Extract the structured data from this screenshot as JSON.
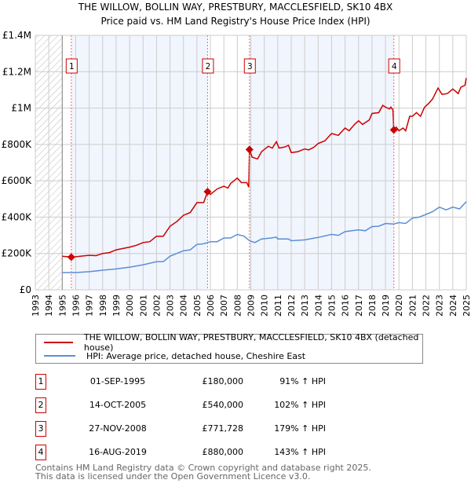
{
  "chart_data": {
    "type": "line",
    "title": "THE WILLOW, BOLLIN WAY, PRESTBURY, MACCLESFIELD, SK10 4BX",
    "subtitle": "Price paid vs. HM Land Registry's House Price Index (HPI)",
    "xlim": [
      1993,
      2025
    ],
    "ylim": [
      0,
      1400000
    ],
    "y_ticks": [
      {
        "v": 0,
        "label": "£0"
      },
      {
        "v": 200000,
        "label": "£200K"
      },
      {
        "v": 400000,
        "label": "£400K"
      },
      {
        "v": 600000,
        "label": "£600K"
      },
      {
        "v": 800000,
        "label": "£800K"
      },
      {
        "v": 1000000,
        "label": "£1M"
      },
      {
        "v": 1200000,
        "label": "£1.2M"
      },
      {
        "v": 1400000,
        "label": "£1.4M"
      }
    ],
    "x_ticks": [
      "1993",
      "1994",
      "1995",
      "1996",
      "1997",
      "1998",
      "1999",
      "2000",
      "2001",
      "2002",
      "2003",
      "2004",
      "2005",
      "2006",
      "2007",
      "2008",
      "2009",
      "2010",
      "2011",
      "2012",
      "2013",
      "2014",
      "2015",
      "2016",
      "2017",
      "2018",
      "2019",
      "2020",
      "2021",
      "2022",
      "2023",
      "2024",
      "2025"
    ],
    "grid": true,
    "hatched_range": [
      1993,
      1995
    ],
    "series": [
      {
        "name": "THE WILLOW, BOLLIN WAY, PRESTBURY, MACCLESFIELD, SK10 4BX (detached house)",
        "color": "#cc0000",
        "x": [
          1995,
          1995.67,
          1996,
          1997,
          1997.5,
          1998,
          1998.5,
          1999,
          2000,
          2000.5,
          2001,
          2001.5,
          2002,
          2002.5,
          2003,
          2003.5,
          2004,
          2004.5,
          2005,
          2005.5,
          2005.79,
          2006,
          2006.5,
          2007,
          2007.3,
          2007.5,
          2008,
          2008.3,
          2008.7,
          2008.85,
          2008.9,
          2009.1,
          2009.5,
          2009.8,
          2010.3,
          2010.6,
          2010.9,
          2011.1,
          2011.5,
          2011.8,
          2012,
          2012.5,
          2013,
          2013.3,
          2013.7,
          2014,
          2014.5,
          2015,
          2015.5,
          2016,
          2016.3,
          2016.7,
          2017,
          2017.3,
          2017.8,
          2018,
          2018.5,
          2018.8,
          2019,
          2019.3,
          2019.4,
          2019.55,
          2019.62,
          2019.8,
          2020,
          2020.3,
          2020.5,
          2020.8,
          2021,
          2021.3,
          2021.6,
          2021.9,
          2022.2,
          2022.5,
          2022.9,
          2023.2,
          2023.6,
          2024,
          2024.4,
          2024.6,
          2024.9,
          2025
        ],
        "y": [
          185000,
          180000,
          182000,
          190000,
          188000,
          200000,
          205000,
          220000,
          235000,
          245000,
          260000,
          265000,
          295000,
          295000,
          350000,
          375000,
          410000,
          425000,
          480000,
          480000,
          540000,
          525000,
          555000,
          570000,
          560000,
          585000,
          615000,
          590000,
          590000,
          565000,
          772000,
          730000,
          720000,
          760000,
          790000,
          780000,
          815000,
          780000,
          785000,
          795000,
          755000,
          760000,
          775000,
          770000,
          785000,
          805000,
          820000,
          860000,
          850000,
          890000,
          875000,
          910000,
          930000,
          910000,
          935000,
          970000,
          975000,
          1015000,
          1005000,
          995000,
          1005000,
          990000,
          880000,
          895000,
          875000,
          890000,
          875000,
          955000,
          955000,
          975000,
          955000,
          1005000,
          1025000,
          1050000,
          1110000,
          1075000,
          1080000,
          1105000,
          1080000,
          1115000,
          1125000,
          1165000
        ]
      },
      {
        "name": "HPI: Average price, detached house, Cheshire East",
        "color": "#5b8fd6",
        "x": [
          1995,
          1996,
          1997,
          1998,
          1999,
          2000,
          2001,
          2002,
          2002.5,
          2003,
          2004,
          2004.5,
          2005,
          2005.5,
          2006,
          2006.5,
          2007,
          2007.5,
          2008,
          2008.5,
          2008.9,
          2009.3,
          2009.8,
          2010.5,
          2010.9,
          2011,
          2011.8,
          2012,
          2013,
          2014,
          2015,
          2015.5,
          2016,
          2017,
          2017.5,
          2018,
          2018.5,
          2019,
          2019.6,
          2020,
          2020.5,
          2021,
          2021.5,
          2022,
          2022.5,
          2023,
          2023.5,
          2024,
          2024.5,
          2025
        ],
        "y": [
          95000,
          95000,
          100000,
          108000,
          115000,
          125000,
          138000,
          155000,
          155000,
          185000,
          215000,
          220000,
          250000,
          253000,
          265000,
          265000,
          285000,
          285000,
          305000,
          295000,
          270000,
          260000,
          280000,
          285000,
          290000,
          280000,
          280000,
          270000,
          275000,
          288000,
          305000,
          300000,
          320000,
          330000,
          325000,
          348000,
          350000,
          365000,
          362000,
          370000,
          365000,
          395000,
          400000,
          415000,
          430000,
          455000,
          440000,
          455000,
          445000,
          485000
        ]
      }
    ],
    "sales": [
      {
        "num": "1",
        "x": 1995.67,
        "y": 180000,
        "date": "01-SEP-1995",
        "price": "£180,000",
        "hpi": "91% ↑ HPI"
      },
      {
        "num": "2",
        "x": 2005.79,
        "y": 540000,
        "date": "14-OCT-2005",
        "price": "£540,000",
        "hpi": "102% ↑ HPI"
      },
      {
        "num": "3",
        "x": 2008.9,
        "y": 771728,
        "date": "27-NOV-2008",
        "price": "£771,728",
        "hpi": "179% ↑ HPI"
      },
      {
        "num": "4",
        "x": 2019.62,
        "y": 880000,
        "date": "16-AUG-2019",
        "price": "£880,000",
        "hpi": "143% ↑ HPI"
      }
    ],
    "legend_position": "below"
  },
  "footer": {
    "line1": "Contains HM Land Registry data © Crown copyright and database right 2025.",
    "line2": "This data is licensed under the Open Government Licence v3.0."
  }
}
